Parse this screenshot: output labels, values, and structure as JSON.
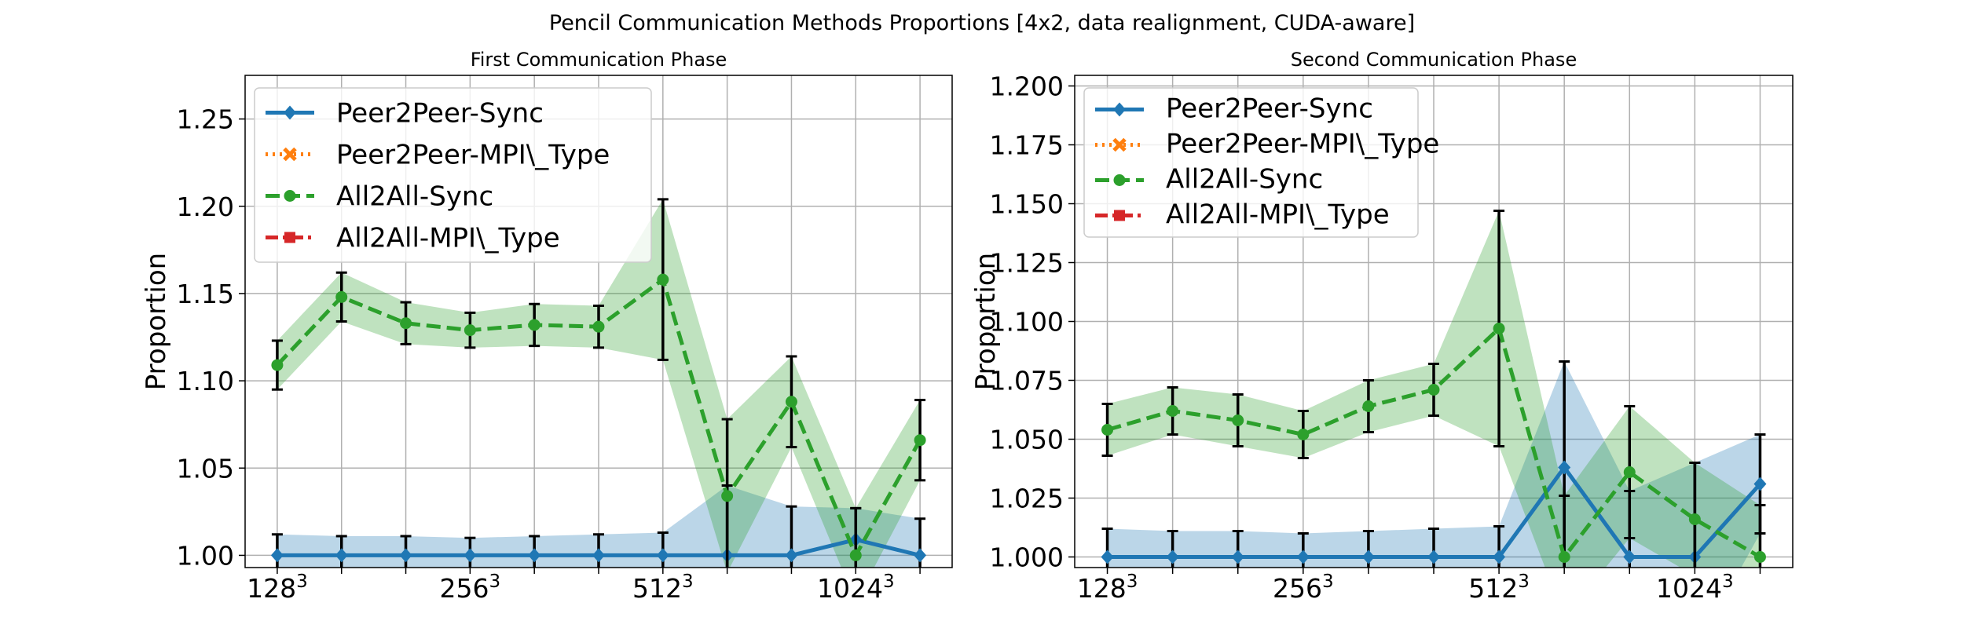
{
  "chart_data": {
    "title": "Pencil Communication Methods Proportions [4x2, data realignment, CUDA-aware]",
    "charts": [
      {
        "type": "line",
        "title": "First Communication Phase",
        "ylabel": "Proportion",
        "ylim": [
          0.993,
          1.275
        ],
        "yticks": [
          1.0,
          1.05,
          1.1,
          1.15,
          1.2,
          1.25
        ],
        "ytick_labels": [
          "1.00",
          "1.05",
          "1.10",
          "1.15",
          "1.20",
          "1.25"
        ],
        "x": [
          0,
          1,
          2,
          3,
          4,
          5,
          6,
          7,
          8,
          9,
          10
        ],
        "xlim": [
          -0.5,
          10.5
        ],
        "xticks": [
          0,
          3,
          6,
          9
        ],
        "xtick_base": [
          "128",
          "256",
          "512",
          "1024"
        ],
        "xtick_exp": "3",
        "grid": true,
        "legend_position": "upper-left",
        "series": [
          {
            "name": "Peer2Peer-Sync",
            "color": "#1f77b4",
            "dash": "solid",
            "marker": "diamond",
            "values": [
              1.0,
              1.0,
              1.0,
              1.0,
              1.0,
              1.0,
              1.0,
              1.0,
              1.0,
              1.009,
              1.0
            ],
            "err": [
              0.012,
              0.011,
              0.011,
              0.01,
              0.011,
              0.012,
              0.013,
              0.04,
              0.028,
              0.018,
              0.021
            ]
          },
          {
            "name": "Peer2Peer-MPI\\_Type",
            "color": "#ff7f0e",
            "dash": "dotted",
            "marker": "x",
            "values": []
          },
          {
            "name": "All2All-Sync",
            "color": "#2ca02c",
            "dash": "dashed",
            "marker": "circle",
            "values": [
              1.109,
              1.148,
              1.133,
              1.129,
              1.132,
              1.131,
              1.158,
              1.034,
              1.088,
              1.0,
              1.066
            ],
            "err": [
              0.014,
              0.014,
              0.012,
              0.01,
              0.012,
              0.012,
              0.046,
              0.044,
              0.026,
              0.027,
              0.023
            ]
          },
          {
            "name": "All2All-MPI\\_Type",
            "color": "#d62728",
            "dash": "dashdot",
            "marker": "square",
            "values": []
          }
        ]
      },
      {
        "type": "line",
        "title": "Second Communication Phase",
        "ylabel": "Proportion",
        "ylim": [
          0.9955,
          1.2045
        ],
        "yticks": [
          1.0,
          1.025,
          1.05,
          1.075,
          1.1,
          1.125,
          1.15,
          1.175,
          1.2
        ],
        "ytick_labels": [
          "1.000",
          "1.025",
          "1.050",
          "1.075",
          "1.100",
          "1.125",
          "1.150",
          "1.175",
          "1.200"
        ],
        "x": [
          0,
          1,
          2,
          3,
          4,
          5,
          6,
          7,
          8,
          9,
          10
        ],
        "xlim": [
          -0.5,
          10.5
        ],
        "xticks": [
          0,
          3,
          6,
          9
        ],
        "xtick_base": [
          "128",
          "256",
          "512",
          "1024"
        ],
        "xtick_exp": "3",
        "grid": true,
        "legend_position": "upper-left",
        "series": [
          {
            "name": "Peer2Peer-Sync",
            "color": "#1f77b4",
            "dash": "solid",
            "marker": "diamond",
            "values": [
              1.0,
              1.0,
              1.0,
              1.0,
              1.0,
              1.0,
              1.0,
              1.038,
              1.0,
              1.0,
              1.031
            ],
            "err": [
              0.012,
              0.011,
              0.011,
              0.01,
              0.011,
              0.012,
              0.013,
              0.045,
              0.028,
              0.04,
              0.021
            ]
          },
          {
            "name": "Peer2Peer-MPI\\_Type",
            "color": "#ff7f0e",
            "dash": "dotted",
            "marker": "x",
            "values": []
          },
          {
            "name": "All2All-Sync",
            "color": "#2ca02c",
            "dash": "dashed",
            "marker": "circle",
            "values": [
              1.054,
              1.062,
              1.058,
              1.052,
              1.064,
              1.071,
              1.097,
              1.0,
              1.036,
              1.016,
              1.0
            ],
            "err": [
              0.011,
              0.01,
              0.011,
              0.01,
              0.011,
              0.011,
              0.05,
              0.026,
              0.028,
              0.024,
              0.022
            ]
          },
          {
            "name": "All2All-MPI\\_Type",
            "color": "#d62728",
            "dash": "dashdot",
            "marker": "square",
            "values": []
          }
        ]
      }
    ]
  }
}
